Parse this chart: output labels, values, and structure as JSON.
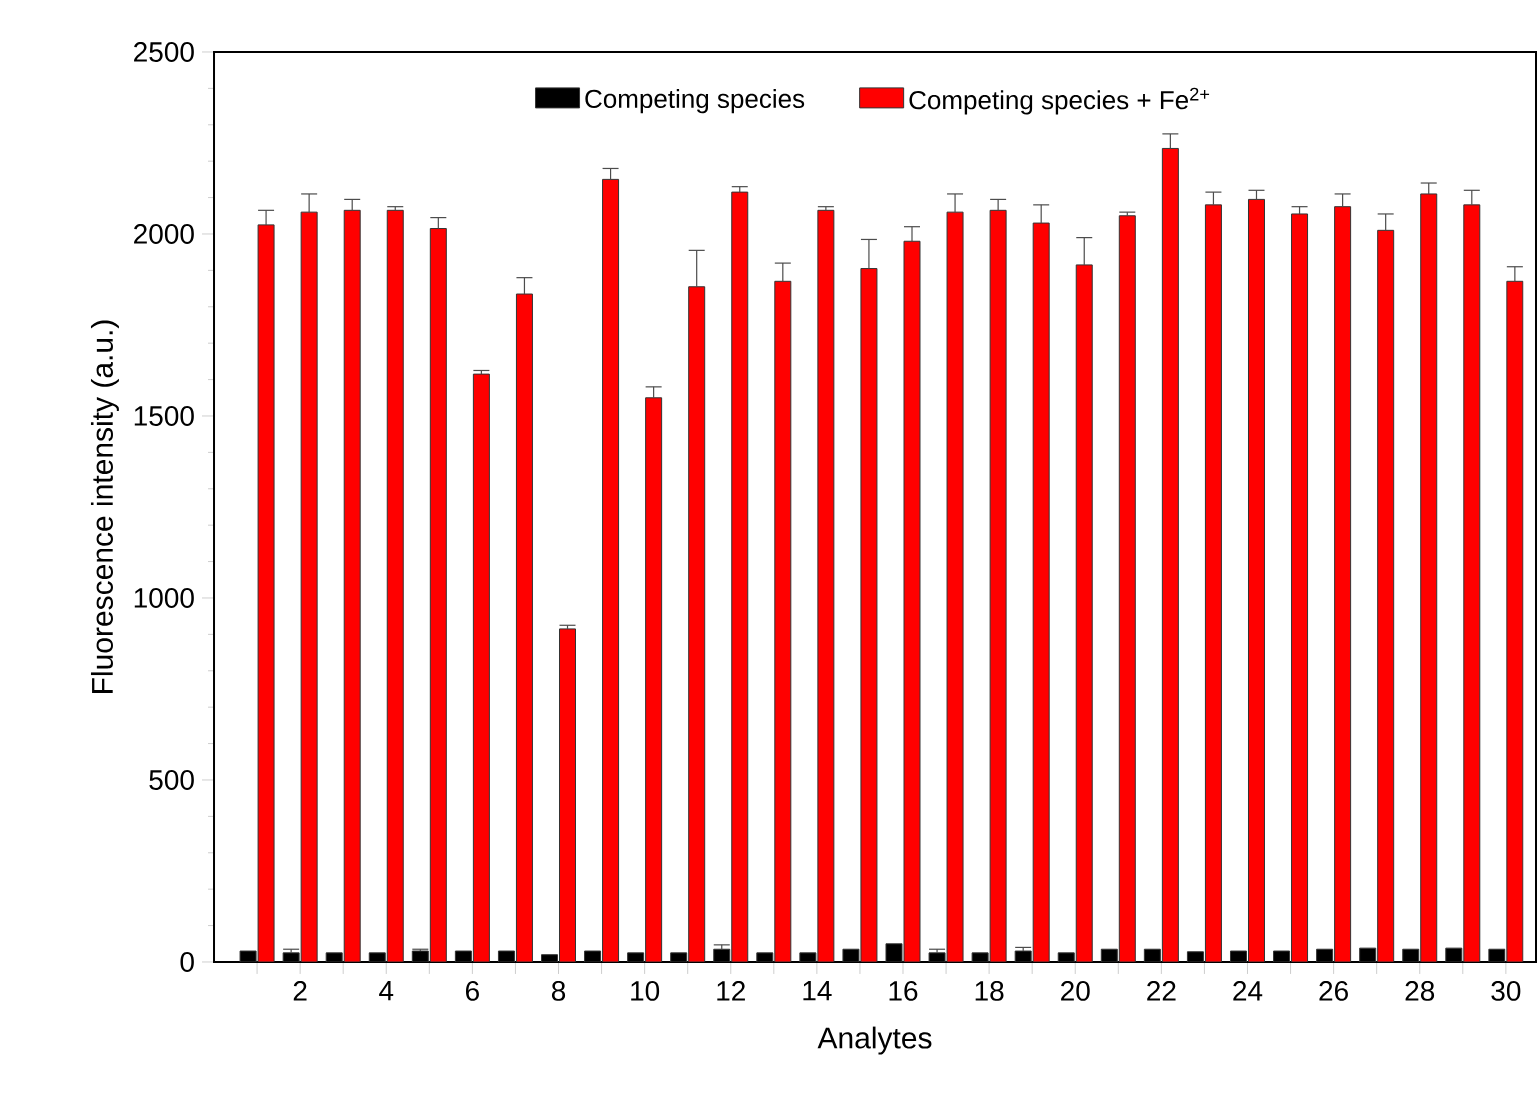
{
  "chart_data": {
    "type": "bar",
    "xlabel": "Analytes",
    "ylabel": "Fluorescence intensity (a.u.)",
    "x": [
      1,
      2,
      3,
      4,
      5,
      6,
      7,
      8,
      9,
      10,
      11,
      12,
      13,
      14,
      15,
      16,
      17,
      18,
      19,
      20,
      21,
      22,
      23,
      24,
      25,
      26,
      27,
      28,
      29,
      30
    ],
    "xlim": [
      0,
      30.7
    ],
    "xticks": [
      {
        "value": 1,
        "label": null
      },
      2,
      {
        "value": 3,
        "label": null
      },
      4,
      {
        "value": 5,
        "label": null
      },
      6,
      {
        "value": 7,
        "label": null
      },
      8,
      {
        "value": 9,
        "label": null
      },
      10,
      {
        "value": 11,
        "label": null
      },
      12,
      {
        "value": 13,
        "label": null
      },
      14,
      {
        "value": 15,
        "label": null
      },
      16,
      {
        "value": 17,
        "label": null
      },
      18,
      {
        "value": 19,
        "label": null
      },
      20,
      {
        "value": 21,
        "label": null
      },
      22,
      {
        "value": 23,
        "label": null
      },
      24,
      {
        "value": 25,
        "label": null
      },
      26,
      {
        "value": 27,
        "label": null
      },
      28,
      {
        "value": 29,
        "label": null
      },
      30
    ],
    "ylim": [
      0,
      2500
    ],
    "yticks": [
      0,
      500,
      1000,
      1500,
      2000,
      2500
    ],
    "legend": "top",
    "grid": false,
    "series": [
      {
        "name": "Competing species",
        "color": "#000000",
        "values": [
          30,
          25,
          25,
          25,
          30,
          30,
          30,
          20,
          30,
          25,
          25,
          35,
          25,
          25,
          35,
          50,
          25,
          25,
          30,
          25,
          35,
          35,
          28,
          30,
          30,
          35,
          38,
          35,
          38,
          35
        ],
        "errors": [
          null,
          10,
          null,
          null,
          5,
          null,
          null,
          null,
          null,
          null,
          null,
          12,
          null,
          null,
          null,
          null,
          10,
          null,
          10,
          null,
          null,
          null,
          null,
          null,
          null,
          null,
          null,
          null,
          null,
          null
        ]
      },
      {
        "name": "Competing species + Fe$^{2+}$",
        "color": "#ff0000",
        "values": [
          2025,
          2060,
          2065,
          2065,
          2015,
          1615,
          1835,
          915,
          2150,
          1550,
          1855,
          2115,
          1870,
          2065,
          1905,
          1980,
          2060,
          2065,
          2030,
          1915,
          2050,
          2235,
          2080,
          2095,
          2055,
          2075,
          2010,
          2110,
          2080,
          1870
        ],
        "errors": [
          40,
          50,
          30,
          10,
          30,
          10,
          45,
          10,
          30,
          30,
          100,
          15,
          50,
          10,
          80,
          40,
          50,
          30,
          50,
          75,
          10,
          40,
          35,
          25,
          20,
          35,
          45,
          30,
          40,
          40
        ]
      }
    ]
  }
}
